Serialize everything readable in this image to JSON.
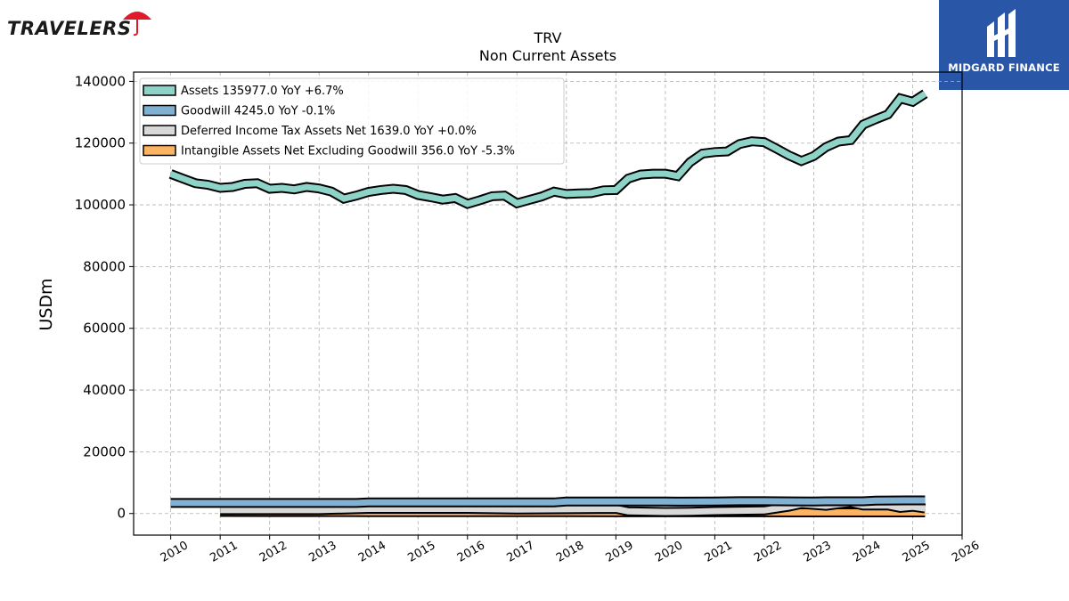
{
  "logos": {
    "left_text": "TRAVELERS",
    "right_text": "MIDGARD FINANCE"
  },
  "chart_data": {
    "type": "line",
    "title": "TRV",
    "subtitle": "Non Current  Assets",
    "ylabel": "USDm",
    "xlabel": "",
    "ylim": [
      -7000,
      143000
    ],
    "xlim": [
      2009.25,
      2026.0
    ],
    "yticks": [
      0,
      20000,
      40000,
      60000,
      80000,
      100000,
      120000,
      140000
    ],
    "ytick_labels": [
      "0",
      "20000",
      "40000",
      "60000",
      "80000",
      "100000",
      "120000",
      "140000"
    ],
    "xticks": [
      2010,
      2011,
      2012,
      2013,
      2014,
      2015,
      2016,
      2017,
      2018,
      2019,
      2020,
      2021,
      2022,
      2023,
      2024,
      2025,
      2026
    ],
    "xtick_labels": [
      "2010",
      "2011",
      "2012",
      "2013",
      "2014",
      "2015",
      "2016",
      "2017",
      "2018",
      "2019",
      "2020",
      "2021",
      "2022",
      "2023",
      "2024",
      "2025",
      "2026"
    ],
    "grid": true,
    "legend_position": "top-left",
    "series": [
      {
        "name": "Assets  135977.0 YoY +6.7%",
        "color": "#8dd3c7",
        "x": [
          2010.0,
          2010.25,
          2010.5,
          2010.75,
          2011.0,
          2011.25,
          2011.5,
          2011.75,
          2012.0,
          2012.25,
          2012.5,
          2012.75,
          2013.0,
          2013.25,
          2013.5,
          2013.75,
          2014.0,
          2014.25,
          2014.5,
          2014.75,
          2015.0,
          2015.25,
          2015.5,
          2015.75,
          2016.0,
          2016.25,
          2016.5,
          2016.75,
          2017.0,
          2017.25,
          2017.5,
          2017.75,
          2018.0,
          2018.25,
          2018.5,
          2018.75,
          2019.0,
          2019.25,
          2019.5,
          2019.75,
          2020.0,
          2020.25,
          2020.5,
          2020.75,
          2021.0,
          2021.25,
          2021.5,
          2021.75,
          2022.0,
          2022.25,
          2022.5,
          2022.75,
          2023.0,
          2023.25,
          2023.5,
          2023.75,
          2024.0,
          2024.25,
          2024.5,
          2024.75,
          2025.0,
          2025.25
        ],
        "values": [
          110000,
          108500,
          107000,
          106500,
          105500,
          105800,
          106800,
          107000,
          105200,
          105500,
          105000,
          105800,
          105300,
          104300,
          102000,
          103000,
          104200,
          104800,
          105200,
          104800,
          103200,
          102500,
          101700,
          102200,
          100300,
          101500,
          102800,
          103000,
          100500,
          101600,
          102700,
          104300,
          103500,
          103700,
          103800,
          104700,
          104800,
          108500,
          109800,
          110100,
          110100,
          109300,
          113800,
          116600,
          117100,
          117300,
          119700,
          120600,
          120300,
          118200,
          116000,
          114200,
          115800,
          118700,
          120500,
          121000,
          126000,
          127700,
          129300,
          134500,
          133400,
          135977
        ]
      },
      {
        "name": "Goodwill  4245.0 YoY -0.1%",
        "color": "#80b1d3",
        "x": [
          2010.0,
          2011.0,
          2012.0,
          2013.0,
          2013.75,
          2014.0,
          2015.0,
          2016.0,
          2017.0,
          2017.75,
          2018.0,
          2019.0,
          2020.0,
          2020.25,
          2021.0,
          2021.5,
          2022.0,
          2023.0,
          2023.25,
          2024.0,
          2024.25,
          2025.0,
          2025.25
        ],
        "values": [
          3400,
          3400,
          3400,
          3400,
          3400,
          3600,
          3600,
          3600,
          3600,
          3600,
          3900,
          3900,
          3900,
          3850,
          3900,
          4000,
          4000,
          3900,
          3950,
          3950,
          4200,
          4250,
          4245
        ]
      },
      {
        "name": "Deferred Income Tax Assets Net  1639.0 YoY +0.0%",
        "color": "#d9d9d9",
        "x": [
          2011.0,
          2012.0,
          2013.0,
          2014.0,
          2015.0,
          2016.0,
          2017.0,
          2018.0,
          2019.0,
          2019.25,
          2020.0,
          2020.5,
          2021.0,
          2022.0,
          2022.5,
          2022.75,
          2023.25,
          2023.5,
          2023.75,
          2024.0,
          2024.5,
          2024.75,
          2025.0,
          2025.25
        ],
        "values": [
          1100,
          1100,
          1100,
          1500,
          1500,
          1500,
          1300,
          1400,
          1500,
          700,
          500,
          600,
          800,
          1000,
          2200,
          3100,
          2500,
          3000,
          3400,
          2600,
          2600,
          1800,
          2200,
          1639
        ]
      },
      {
        "name": "Intangible Assets Net Excluding Goodwill  356.0 YoY -5.3%",
        "color": "#fdb462",
        "x": [
          2011.0,
          2012.0,
          2013.0,
          2014.0,
          2015.0,
          2016.0,
          2017.0,
          2018.0,
          2019.0,
          2020.0,
          2021.0,
          2022.0,
          2023.0,
          2024.0,
          2025.0,
          2025.25
        ],
        "values": [
          500,
          480,
          460,
          440,
          430,
          420,
          410,
          400,
          390,
          385,
          380,
          375,
          370,
          365,
          360,
          356
        ]
      }
    ]
  }
}
